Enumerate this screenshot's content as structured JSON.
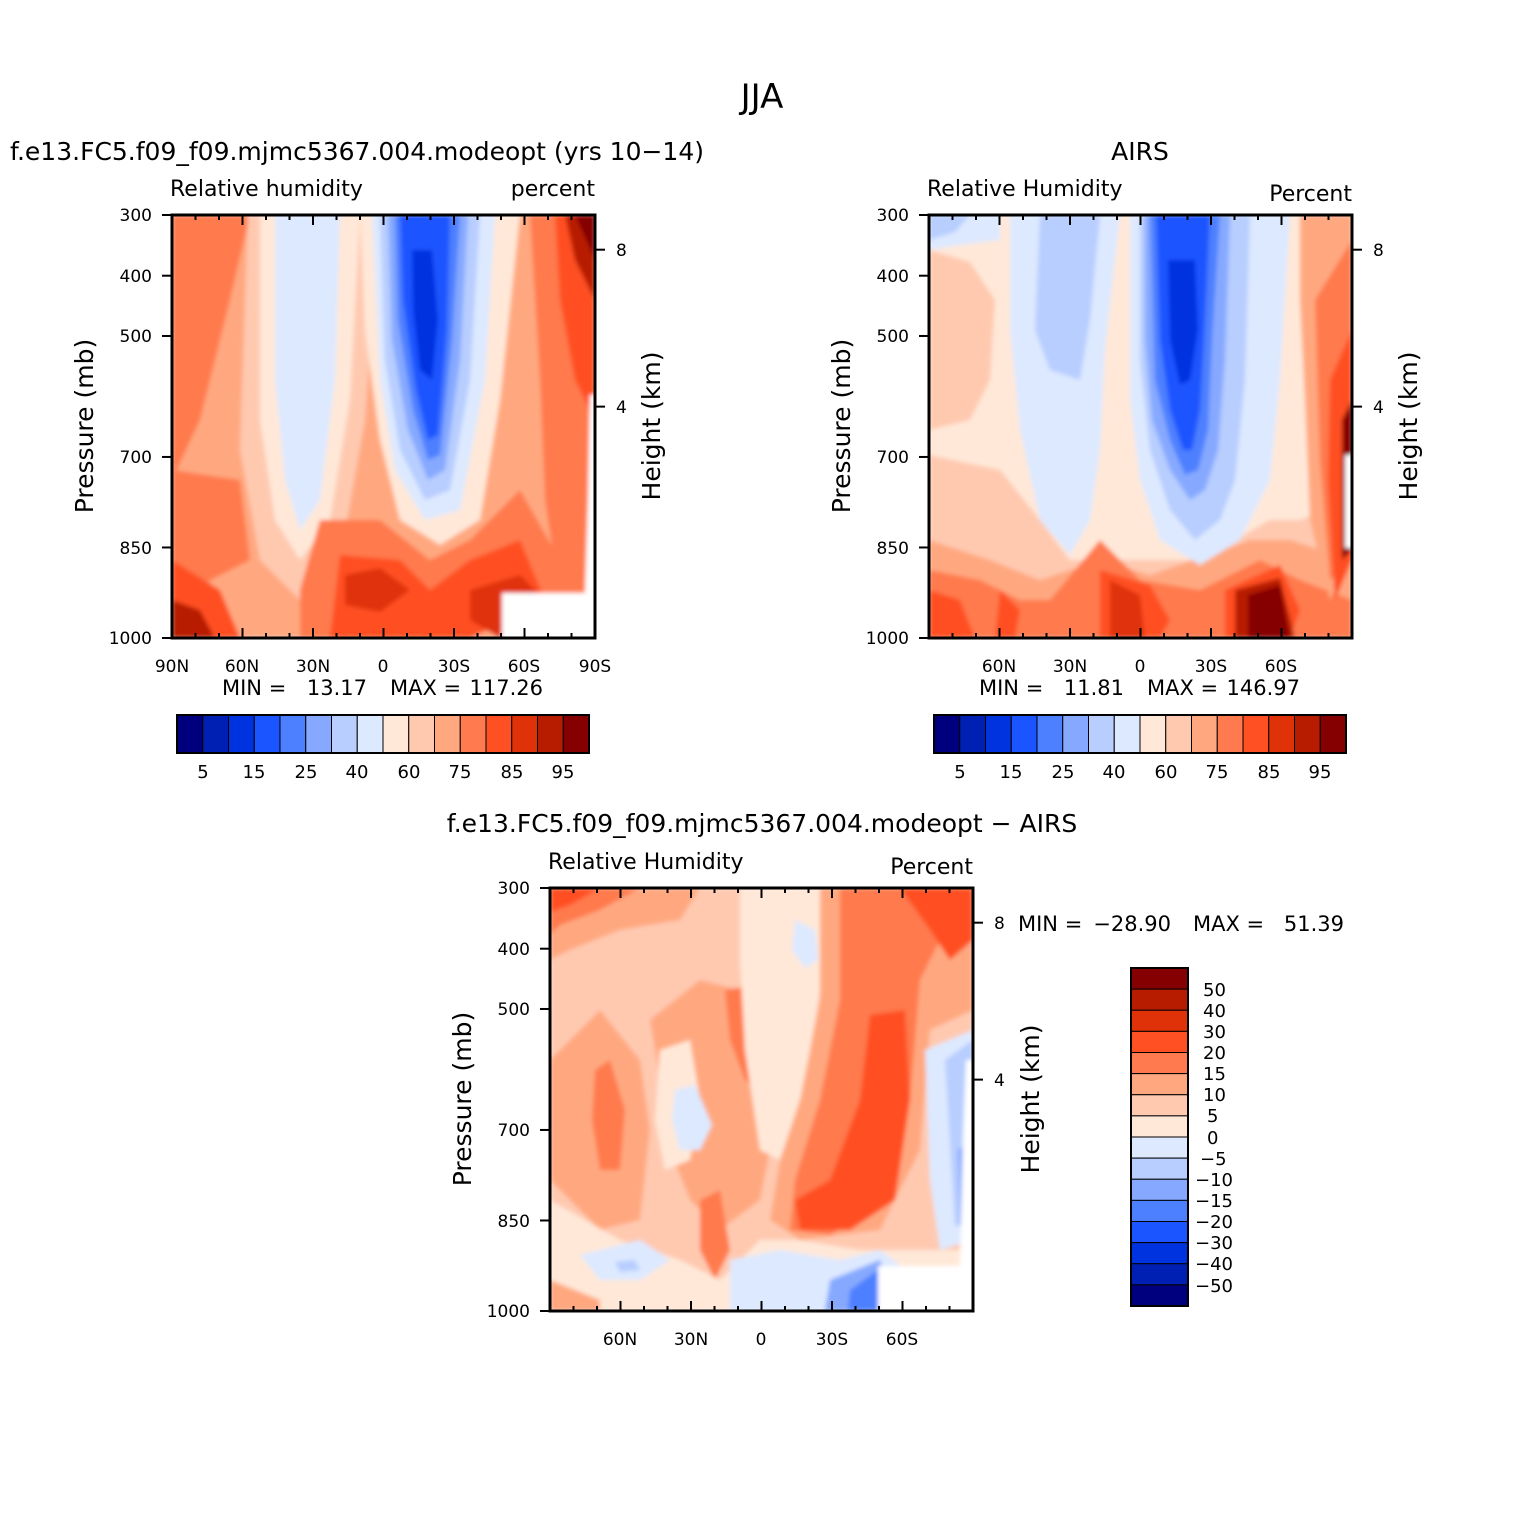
{
  "page_title": "JJA",
  "colors": {
    "abs_palette": [
      "#00007f",
      "#0020b4",
      "#0033e0",
      "#1b55ff",
      "#4d80ff",
      "#86a9ff",
      "#b8ceff",
      "#dde9ff",
      "#ffe8d8",
      "#ffc9b0",
      "#ffa880",
      "#ff7a4e",
      "#ff5024",
      "#e03208",
      "#b81c00",
      "#850000"
    ],
    "diff_palette": [
      "#00007f",
      "#0020b4",
      "#0033e0",
      "#1b55ff",
      "#4d80ff",
      "#86a9ff",
      "#b8ceff",
      "#dde9ff",
      "#ffe8d8",
      "#ffc9b0",
      "#ffa880",
      "#ff7a4e",
      "#ff5024",
      "#e03208",
      "#b81c00",
      "#850000"
    ]
  },
  "chart_data": [
    {
      "type": "heatmap",
      "title": "f.e13.FC5.f09_f09.mjmc5367.004.modeopt (yrs 10−14)",
      "left_label": "Relative  humidity",
      "right_label": "percent",
      "ylabel": "Pressure  (mb)",
      "ylabel_right": "Height  (km)",
      "y_ticks": [
        "300",
        "400",
        "500",
        "700",
        "850",
        "1000"
      ],
      "y_right_ticks": [
        "8",
        "4"
      ],
      "x_ticks": [
        "90N",
        "60N",
        "30N",
        "0",
        "30S",
        "60S",
        "90S"
      ],
      "min_label": "MIN  =",
      "min_value": "13.17",
      "max_label": "MAX  =",
      "max_value": "117.26",
      "colorbar_labels": [
        "5",
        "15",
        "25",
        "40",
        "60",
        "75",
        "85",
        "95"
      ]
    },
    {
      "type": "heatmap",
      "title": "AIRS",
      "left_label": "Relative  Humidity",
      "right_label": "Percent",
      "ylabel": "Pressure  (mb)",
      "ylabel_right": "Height  (km)",
      "y_ticks": [
        "300",
        "400",
        "500",
        "700",
        "850",
        "1000"
      ],
      "y_right_ticks": [
        "8",
        "4"
      ],
      "x_ticks": [
        "60N",
        "30N",
        "0",
        "30S",
        "60S"
      ],
      "min_label": "MIN  =",
      "min_value": "11.81",
      "max_label": "MAX  =",
      "max_value": "146.97",
      "colorbar_labels": [
        "5",
        "15",
        "25",
        "40",
        "60",
        "75",
        "85",
        "95"
      ]
    },
    {
      "type": "heatmap",
      "title": "f.e13.FC5.f09_f09.mjmc5367.004.modeopt  −  AIRS",
      "left_label": "Relative  Humidity",
      "right_label": "Percent",
      "ylabel": "Pressure  (mb)",
      "ylabel_right": "Height  (km)",
      "y_ticks": [
        "300",
        "400",
        "500",
        "700",
        "850",
        "1000"
      ],
      "y_right_ticks": [
        "8",
        "4"
      ],
      "x_ticks": [
        "60N",
        "30N",
        "0",
        "30S",
        "60S"
      ],
      "min_label": "MIN  =",
      "min_value": "−28.90",
      "max_label": "MAX  =",
      "max_value": "51.39",
      "colorbar_labels": [
        "50",
        "40",
        "30",
        "20",
        "15",
        "10",
        "5",
        "0",
        "−5",
        "−10",
        "−15",
        "−20",
        "−30",
        "−40",
        "−50"
      ]
    }
  ]
}
